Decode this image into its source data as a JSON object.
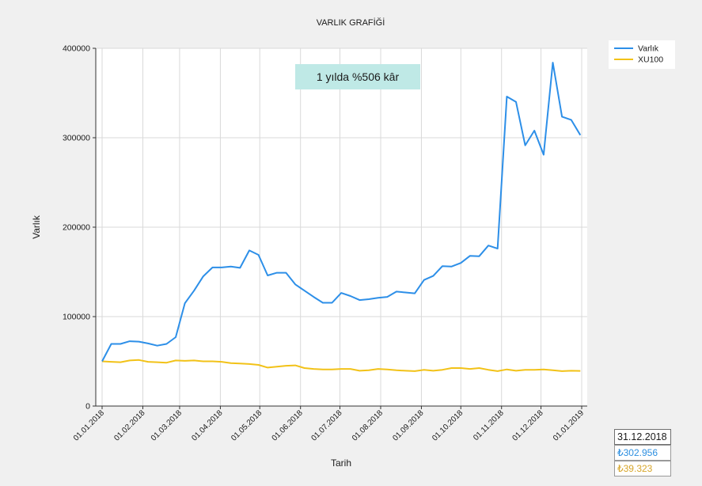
{
  "chart_data": {
    "type": "line",
    "title": "VARLIK GRAFİĞİ",
    "xlabel": "Tarih",
    "ylabel": "Varlık",
    "ylim": [
      0,
      400000
    ],
    "yticks": [
      "0",
      "100000",
      "200000",
      "300000",
      "400000"
    ],
    "xlim": [
      "2018-01-01",
      "2019-01-01"
    ],
    "xticks": [
      {
        "date": "2018-01-01",
        "label": "01.01.2018"
      },
      {
        "date": "2018-02-01",
        "label": "01.02.2018"
      },
      {
        "date": "2018-03-01",
        "label": "01.03.2018"
      },
      {
        "date": "2018-04-01",
        "label": "01.04.2018"
      },
      {
        "date": "2018-05-01",
        "label": "01.05.2018"
      },
      {
        "date": "2018-06-01",
        "label": "01.06.2018"
      },
      {
        "date": "2018-07-01",
        "label": "01.07.2018"
      },
      {
        "date": "2018-08-01",
        "label": "01.08.2018"
      },
      {
        "date": "2018-09-01",
        "label": "01.09.2018"
      },
      {
        "date": "2018-10-01",
        "label": "01.10.2018"
      },
      {
        "date": "2018-11-01",
        "label": "01.11.2018"
      },
      {
        "date": "2018-12-01",
        "label": "01.12.2018"
      },
      {
        "date": "2019-01-01",
        "label": "01.01.2019"
      }
    ],
    "grid": true,
    "legend_position": "top-right",
    "annotation": "1 yılda %506 kâr",
    "annotation_color": "#bfe9e6",
    "series": [
      {
        "name": "Varlık",
        "color": "#2d8fe8",
        "points": [
          [
            "2018-01-01",
            50000
          ],
          [
            "2018-01-08",
            69500
          ],
          [
            "2018-01-15",
            69500
          ],
          [
            "2018-01-22",
            72500
          ],
          [
            "2018-01-29",
            72000
          ],
          [
            "2018-02-05",
            70000
          ],
          [
            "2018-02-12",
            67500
          ],
          [
            "2018-02-19",
            69500
          ],
          [
            "2018-02-26",
            77000
          ],
          [
            "2018-03-05",
            115000
          ],
          [
            "2018-03-12",
            129000
          ],
          [
            "2018-03-19",
            145000
          ],
          [
            "2018-03-26",
            155000
          ],
          [
            "2018-04-02",
            155000
          ],
          [
            "2018-04-09",
            156000
          ],
          [
            "2018-04-16",
            154500
          ],
          [
            "2018-04-23",
            174000
          ],
          [
            "2018-04-30",
            169000
          ],
          [
            "2018-05-07",
            146000
          ],
          [
            "2018-05-14",
            149000
          ],
          [
            "2018-05-21",
            149000
          ],
          [
            "2018-05-28",
            136000
          ],
          [
            "2018-06-04",
            129000
          ],
          [
            "2018-06-11",
            122000
          ],
          [
            "2018-06-18",
            115500
          ],
          [
            "2018-06-25",
            115500
          ],
          [
            "2018-07-02",
            126500
          ],
          [
            "2018-07-09",
            123000
          ],
          [
            "2018-07-16",
            118500
          ],
          [
            "2018-07-23",
            119500
          ],
          [
            "2018-07-30",
            121000
          ],
          [
            "2018-08-06",
            122000
          ],
          [
            "2018-08-13",
            128000
          ],
          [
            "2018-08-20",
            127000
          ],
          [
            "2018-08-27",
            126000
          ],
          [
            "2018-09-03",
            141000
          ],
          [
            "2018-09-10",
            145500
          ],
          [
            "2018-09-17",
            156500
          ],
          [
            "2018-09-24",
            156000
          ],
          [
            "2018-10-01",
            160000
          ],
          [
            "2018-10-08",
            168000
          ],
          [
            "2018-10-15",
            167500
          ],
          [
            "2018-10-22",
            179500
          ],
          [
            "2018-10-29",
            176000
          ],
          [
            "2018-11-05",
            346000
          ],
          [
            "2018-11-12",
            340000
          ],
          [
            "2018-11-19",
            291500
          ],
          [
            "2018-11-26",
            308000
          ],
          [
            "2018-12-03",
            281000
          ],
          [
            "2018-12-10",
            384000
          ],
          [
            "2018-12-17",
            323500
          ],
          [
            "2018-12-24",
            320000
          ],
          [
            "2018-12-31",
            302956
          ]
        ]
      },
      {
        "name": "XU100",
        "color": "#f2c218",
        "points": [
          [
            "2018-01-01",
            50000
          ],
          [
            "2018-01-08",
            49500
          ],
          [
            "2018-01-15",
            49000
          ],
          [
            "2018-01-22",
            51000
          ],
          [
            "2018-01-29",
            51500
          ],
          [
            "2018-02-05",
            49500
          ],
          [
            "2018-02-12",
            49000
          ],
          [
            "2018-02-19",
            48500
          ],
          [
            "2018-02-26",
            51000
          ],
          [
            "2018-03-05",
            50500
          ],
          [
            "2018-03-12",
            51000
          ],
          [
            "2018-03-19",
            50000
          ],
          [
            "2018-03-26",
            50000
          ],
          [
            "2018-04-02",
            49500
          ],
          [
            "2018-04-09",
            48000
          ],
          [
            "2018-04-16",
            47500
          ],
          [
            "2018-04-23",
            47000
          ],
          [
            "2018-04-30",
            46000
          ],
          [
            "2018-05-07",
            43000
          ],
          [
            "2018-05-14",
            44000
          ],
          [
            "2018-05-21",
            45000
          ],
          [
            "2018-05-28",
            45500
          ],
          [
            "2018-06-04",
            42500
          ],
          [
            "2018-06-11",
            41500
          ],
          [
            "2018-06-18",
            41000
          ],
          [
            "2018-06-25",
            41000
          ],
          [
            "2018-07-02",
            41500
          ],
          [
            "2018-07-09",
            41500
          ],
          [
            "2018-07-16",
            39500
          ],
          [
            "2018-07-23",
            40000
          ],
          [
            "2018-07-30",
            41500
          ],
          [
            "2018-08-06",
            41000
          ],
          [
            "2018-08-13",
            40000
          ],
          [
            "2018-08-20",
            39500
          ],
          [
            "2018-08-27",
            39000
          ],
          [
            "2018-09-03",
            40500
          ],
          [
            "2018-09-10",
            39500
          ],
          [
            "2018-09-17",
            40500
          ],
          [
            "2018-09-24",
            42500
          ],
          [
            "2018-10-01",
            42500
          ],
          [
            "2018-10-08",
            41500
          ],
          [
            "2018-10-15",
            42500
          ],
          [
            "2018-10-22",
            40500
          ],
          [
            "2018-10-29",
            39000
          ],
          [
            "2018-11-05",
            41000
          ],
          [
            "2018-11-12",
            39500
          ],
          [
            "2018-11-19",
            40500
          ],
          [
            "2018-11-26",
            40500
          ],
          [
            "2018-12-03",
            41000
          ],
          [
            "2018-12-10",
            40000
          ],
          [
            "2018-12-17",
            39000
          ],
          [
            "2018-12-24",
            39500
          ],
          [
            "2018-12-31",
            39323
          ]
        ]
      }
    ]
  },
  "info_panel": {
    "date": "31.12.2018",
    "varlik_value": "₺302.956",
    "xu100_value": "₺39.323",
    "varlik_color": "#2d8fe0",
    "xu100_color": "#d7a62a"
  }
}
